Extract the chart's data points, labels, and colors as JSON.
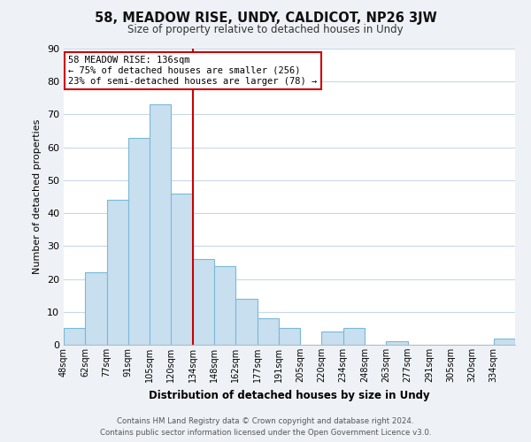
{
  "title": "58, MEADOW RISE, UNDY, CALDICOT, NP26 3JW",
  "subtitle": "Size of property relative to detached houses in Undy",
  "xlabel": "Distribution of detached houses by size in Undy",
  "ylabel": "Number of detached properties",
  "bin_labels": [
    "48sqm",
    "62sqm",
    "77sqm",
    "91sqm",
    "105sqm",
    "120sqm",
    "134sqm",
    "148sqm",
    "162sqm",
    "177sqm",
    "191sqm",
    "205sqm",
    "220sqm",
    "234sqm",
    "248sqm",
    "263sqm",
    "277sqm",
    "291sqm",
    "305sqm",
    "320sqm",
    "334sqm"
  ],
  "bar_values": [
    5,
    22,
    44,
    63,
    73,
    46,
    26,
    24,
    14,
    8,
    5,
    0,
    4,
    5,
    0,
    1,
    0,
    0,
    0,
    0,
    2
  ],
  "bar_color": "#c8dff0",
  "bar_edge_color": "#7ab9d8",
  "vline_x": 6,
  "vline_color": "#cc0000",
  "annotation_line1": "58 MEADOW RISE: 136sqm",
  "annotation_line2": "← 75% of detached houses are smaller (256)",
  "annotation_line3": "23% of semi-detached houses are larger (78) →",
  "annotation_box_color": "#ffffff",
  "annotation_box_edge_color": "#cc0000",
  "ylim": [
    0,
    90
  ],
  "yticks": [
    0,
    10,
    20,
    30,
    40,
    50,
    60,
    70,
    80,
    90
  ],
  "footer_line1": "Contains HM Land Registry data © Crown copyright and database right 2024.",
  "footer_line2": "Contains public sector information licensed under the Open Government Licence v3.0.",
  "bg_color": "#eef2f7",
  "plot_bg_color": "#ffffff",
  "grid_color": "#c8d8e8"
}
